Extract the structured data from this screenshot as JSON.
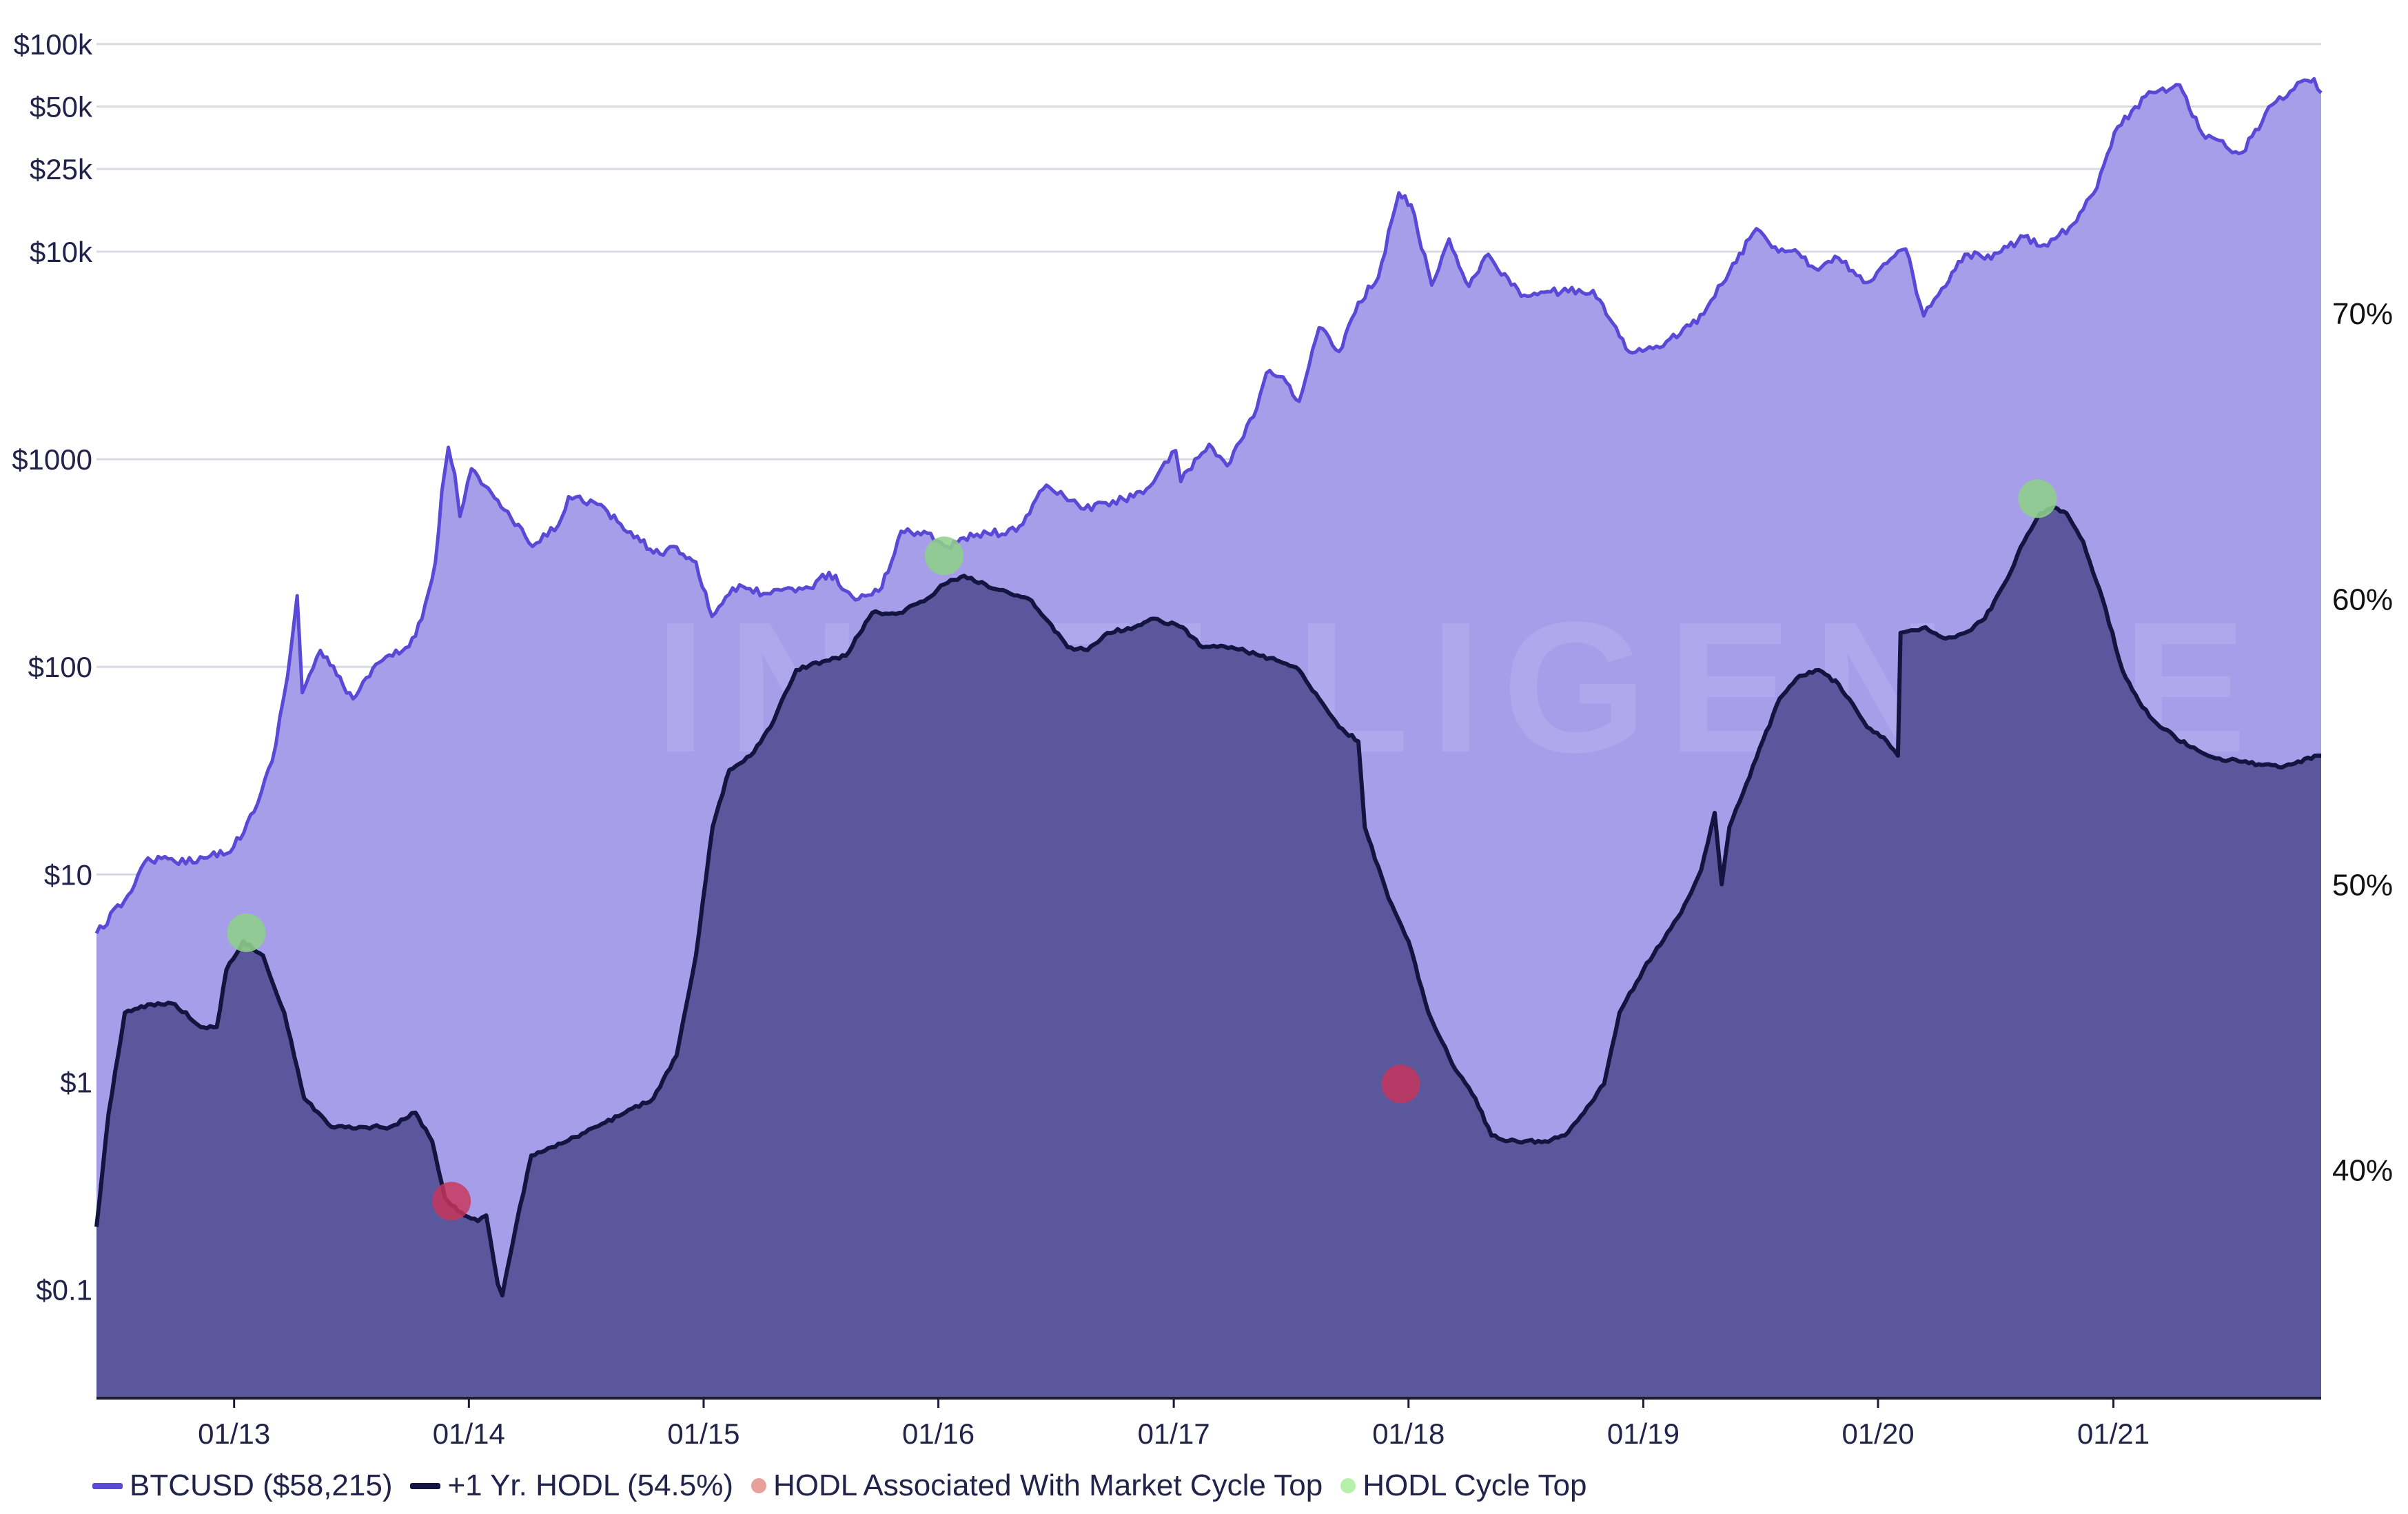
{
  "chart_data": {
    "type": "area",
    "x_ticks": [
      "01/13",
      "01/14",
      "01/15",
      "01/16",
      "01/17",
      "01/18",
      "01/19",
      "01/20",
      "01/21"
    ],
    "y_left": {
      "scale": "log",
      "range": [
        0.03,
        120000
      ],
      "ticks": [
        {
          "value": 100000,
          "label": "$100k"
        },
        {
          "value": 50000,
          "label": "$50k"
        },
        {
          "value": 25000,
          "label": "$25k"
        },
        {
          "value": 10000,
          "label": "$10k"
        },
        {
          "value": 1000,
          "label": "$1000"
        },
        {
          "value": 100,
          "label": "$100"
        },
        {
          "value": 10,
          "label": "$10"
        },
        {
          "value": 1,
          "label": "$1"
        },
        {
          "value": 0.1,
          "label": "$0.1"
        }
      ]
    },
    "y_right": {
      "scale": "linear",
      "unit": "%",
      "range": [
        32,
        80
      ],
      "ticks": [
        {
          "value": 70,
          "label": "70%"
        },
        {
          "value": 60,
          "label": "60%"
        },
        {
          "value": 50,
          "label": "50%"
        },
        {
          "value": 40,
          "label": "40%"
        }
      ]
    },
    "grid": true,
    "legend_position": "bottom-left",
    "series": [
      {
        "name": "BTCUSD ($58,215)",
        "axis": "left",
        "style": "area",
        "line_color": "#5a48d6",
        "fill_color": "#a79eea",
        "points": [
          [
            "2012-06-01",
            5.2
          ],
          [
            "2012-07-15",
            7.5
          ],
          [
            "2012-08-20",
            12
          ],
          [
            "2012-10-01",
            11.5
          ],
          [
            "2012-11-15",
            12
          ],
          [
            "2012-12-31",
            13.5
          ],
          [
            "2013-02-01",
            20
          ],
          [
            "2013-03-01",
            35
          ],
          [
            "2013-03-25",
            90
          ],
          [
            "2013-04-09",
            220
          ],
          [
            "2013-04-17",
            75
          ],
          [
            "2013-05-15",
            120
          ],
          [
            "2013-07-05",
            70
          ],
          [
            "2013-08-15",
            105
          ],
          [
            "2013-09-30",
            125
          ],
          [
            "2013-10-20",
            170
          ],
          [
            "2013-11-10",
            320
          ],
          [
            "2013-11-20",
            700
          ],
          [
            "2013-11-30",
            1140
          ],
          [
            "2013-12-10",
            850
          ],
          [
            "2013-12-18",
            530
          ],
          [
            "2014-01-05",
            900
          ],
          [
            "2014-02-10",
            650
          ],
          [
            "2014-02-25",
            570
          ],
          [
            "2014-04-10",
            380
          ],
          [
            "2014-05-20",
            480
          ],
          [
            "2014-06-05",
            660
          ],
          [
            "2014-07-15",
            620
          ],
          [
            "2014-08-20",
            500
          ],
          [
            "2014-09-25",
            400
          ],
          [
            "2014-10-25",
            350
          ],
          [
            "2014-11-15",
            380
          ],
          [
            "2014-12-20",
            320
          ],
          [
            "2015-01-14",
            175
          ],
          [
            "2015-02-15",
            240
          ],
          [
            "2015-04-15",
            225
          ],
          [
            "2015-06-15",
            240
          ],
          [
            "2015-07-15",
            285
          ],
          [
            "2015-08-25",
            210
          ],
          [
            "2015-10-05",
            240
          ],
          [
            "2015-11-04",
            450
          ],
          [
            "2015-12-15",
            440
          ],
          [
            "2016-01-15",
            380
          ],
          [
            "2016-03-01",
            435
          ],
          [
            "2016-05-01",
            450
          ],
          [
            "2016-06-17",
            750
          ],
          [
            "2016-07-15",
            660
          ],
          [
            "2016-08-15",
            575
          ],
          [
            "2016-10-15",
            640
          ],
          [
            "2016-11-25",
            740
          ],
          [
            "2017-01-04",
            1100
          ],
          [
            "2017-01-12",
            780
          ],
          [
            "2017-02-25",
            1180
          ],
          [
            "2017-03-25",
            930
          ],
          [
            "2017-05-05",
            1600
          ],
          [
            "2017-05-25",
            2600
          ],
          [
            "2017-06-15",
            2500
          ],
          [
            "2017-07-15",
            1900
          ],
          [
            "2017-08-15",
            4300
          ],
          [
            "2017-09-15",
            3300
          ],
          [
            "2017-10-15",
            5700
          ],
          [
            "2017-11-15",
            7500
          ],
          [
            "2017-12-17",
            19200
          ],
          [
            "2018-01-05",
            16800
          ],
          [
            "2018-02-06",
            6900
          ],
          [
            "2018-03-05",
            11500
          ],
          [
            "2018-04-05",
            6800
          ],
          [
            "2018-05-05",
            9700
          ],
          [
            "2018-06-25",
            6100
          ],
          [
            "2018-08-10",
            6400
          ],
          [
            "2018-10-15",
            6500
          ],
          [
            "2018-11-25",
            3900
          ],
          [
            "2018-12-15",
            3250
          ],
          [
            "2019-02-01",
            3500
          ],
          [
            "2019-04-05",
            5000
          ],
          [
            "2019-05-15",
            8000
          ],
          [
            "2019-06-26",
            12900
          ],
          [
            "2019-07-20",
            10500
          ],
          [
            "2019-08-25",
            10200
          ],
          [
            "2019-09-25",
            8300
          ],
          [
            "2019-10-26",
            9500
          ],
          [
            "2019-12-15",
            7100
          ],
          [
            "2020-01-15",
            8800
          ],
          [
            "2020-02-13",
            10300
          ],
          [
            "2020-03-12",
            4900
          ],
          [
            "2020-04-15",
            6800
          ],
          [
            "2020-05-15",
            9700
          ],
          [
            "2020-06-25",
            9200
          ],
          [
            "2020-08-15",
            11800
          ],
          [
            "2020-09-15",
            10800
          ],
          [
            "2020-10-25",
            13100
          ],
          [
            "2020-12-01",
            19000
          ],
          [
            "2021-01-08",
            40000
          ],
          [
            "2021-02-20",
            56000
          ],
          [
            "2021-04-14",
            63500
          ],
          [
            "2021-05-19",
            37000
          ],
          [
            "2021-06-25",
            32000
          ],
          [
            "2021-07-20",
            30000
          ],
          [
            "2021-09-05",
            51000
          ],
          [
            "2021-10-20",
            66000
          ],
          [
            "2021-11-09",
            68000
          ],
          [
            "2021-11-20",
            58215
          ]
        ]
      },
      {
        "name": "+1 Yr. HODL (54.5%)",
        "axis": "right",
        "style": "area",
        "line_color": "#141440",
        "fill_color": "#5b579c",
        "points": [
          [
            "2012-06-01",
            38
          ],
          [
            "2012-06-20",
            42
          ],
          [
            "2012-07-15",
            45.5
          ],
          [
            "2012-08-25",
            45.8
          ],
          [
            "2012-10-01",
            45.8
          ],
          [
            "2012-11-10",
            45
          ],
          [
            "2012-12-05",
            45
          ],
          [
            "2012-12-20",
            47
          ],
          [
            "2013-01-15",
            48
          ],
          [
            "2013-02-15",
            47.5
          ],
          [
            "2013-03-20",
            45.5
          ],
          [
            "2013-04-20",
            42.5
          ],
          [
            "2013-06-01",
            41.5
          ],
          [
            "2013-07-15",
            41.5
          ],
          [
            "2013-09-01",
            41.5
          ],
          [
            "2013-10-10",
            42
          ],
          [
            "2013-11-05",
            41
          ],
          [
            "2013-11-25",
            39
          ],
          [
            "2013-12-25",
            38.4
          ],
          [
            "2014-01-15",
            38.2
          ],
          [
            "2014-01-28",
            38.4
          ],
          [
            "2014-02-15",
            36
          ],
          [
            "2014-02-22",
            35.6
          ],
          [
            "2014-03-15",
            38
          ],
          [
            "2014-04-08",
            40.5
          ],
          [
            "2014-05-15",
            40.8
          ],
          [
            "2014-07-01",
            41.3
          ],
          [
            "2014-09-01",
            42
          ],
          [
            "2014-10-15",
            42.5
          ],
          [
            "2014-11-20",
            44
          ],
          [
            "2014-12-20",
            47.5
          ],
          [
            "2015-01-15",
            52
          ],
          [
            "2015-02-10",
            54
          ],
          [
            "2015-03-15",
            54.5
          ],
          [
            "2015-04-15",
            55.5
          ],
          [
            "2015-05-25",
            57.5
          ],
          [
            "2015-07-05",
            57.8
          ],
          [
            "2015-08-10",
            58
          ],
          [
            "2015-09-20",
            59.5
          ],
          [
            "2015-11-01",
            59.5
          ],
          [
            "2015-12-15",
            60
          ],
          [
            "2016-01-10",
            60.5
          ],
          [
            "2016-02-10",
            60.8
          ],
          [
            "2016-04-05",
            60.3
          ],
          [
            "2016-05-20",
            60
          ],
          [
            "2016-06-20",
            59.2
          ],
          [
            "2016-07-20",
            58.3
          ],
          [
            "2016-08-20",
            58.2
          ],
          [
            "2016-09-20",
            58.8
          ],
          [
            "2016-11-01",
            59
          ],
          [
            "2016-12-01",
            59.3
          ],
          [
            "2017-01-15",
            59
          ],
          [
            "2017-02-15",
            58.3
          ],
          [
            "2017-04-01",
            58.3
          ],
          [
            "2017-05-15",
            58
          ],
          [
            "2017-06-15",
            57.8
          ],
          [
            "2017-07-15",
            57.5
          ],
          [
            "2017-08-15",
            56.5
          ],
          [
            "2017-09-15",
            55.5
          ],
          [
            "2017-10-15",
            55
          ],
          [
            "2017-10-25",
            52
          ],
          [
            "2017-12-01",
            49.5
          ],
          [
            "2018-01-01",
            48
          ],
          [
            "2018-02-01",
            45.5
          ],
          [
            "2018-03-15",
            43.5
          ],
          [
            "2018-04-15",
            42.5
          ],
          [
            "2018-05-10",
            41.2
          ],
          [
            "2018-06-01",
            41
          ],
          [
            "2018-07-01",
            41
          ],
          [
            "2018-08-01",
            41
          ],
          [
            "2018-09-01",
            41.2
          ],
          [
            "2018-10-01",
            42
          ],
          [
            "2018-11-01",
            43
          ],
          [
            "2018-11-25",
            45.5
          ],
          [
            "2019-01-01",
            47
          ],
          [
            "2019-03-01",
            49
          ],
          [
            "2019-04-01",
            50.5
          ],
          [
            "2019-04-22",
            52.5
          ],
          [
            "2019-05-03",
            50
          ],
          [
            "2019-05-15",
            52
          ],
          [
            "2019-06-10",
            53.5
          ],
          [
            "2019-08-01",
            56.5
          ],
          [
            "2019-09-01",
            57.3
          ],
          [
            "2019-10-01",
            57.5
          ],
          [
            "2019-11-01",
            57
          ],
          [
            "2019-12-15",
            55.5
          ],
          [
            "2020-01-15",
            55
          ],
          [
            "2020-02-01",
            54.5
          ],
          [
            "2020-02-05",
            58.8
          ],
          [
            "2020-03-15",
            59
          ],
          [
            "2020-04-15",
            58.6
          ],
          [
            "2020-05-15",
            58.8
          ],
          [
            "2020-06-15",
            59.3
          ],
          [
            "2020-07-15",
            60.5
          ],
          [
            "2020-08-15",
            62
          ],
          [
            "2020-09-10",
            63
          ],
          [
            "2020-10-01",
            63.2
          ],
          [
            "2020-10-20",
            63
          ],
          [
            "2020-11-15",
            62
          ],
          [
            "2020-12-15",
            60
          ],
          [
            "2021-01-15",
            57.5
          ],
          [
            "2021-02-15",
            56.2
          ],
          [
            "2021-03-15",
            55.5
          ],
          [
            "2021-05-01",
            54.8
          ],
          [
            "2021-06-15",
            54.4
          ],
          [
            "2021-07-15",
            54.3
          ],
          [
            "2021-08-15",
            54.2
          ],
          [
            "2021-09-15",
            54.1
          ],
          [
            "2021-10-15",
            54.3
          ],
          [
            "2021-11-20",
            54.5
          ]
        ]
      },
      {
        "name": "HODL Associated With Market Cycle Top",
        "axis": "right",
        "style": "markers",
        "color": "#e8a09a",
        "points": [
          [
            "2013-12-05",
            38.9
          ],
          [
            "2017-12-20",
            43.0
          ]
        ]
      },
      {
        "name": "HODL Cycle Top",
        "axis": "right",
        "style": "markers",
        "color": "#b7f0a8",
        "points": [
          [
            "2013-01-20",
            48.3
          ],
          [
            "2016-01-10",
            61.5
          ],
          [
            "2020-09-05",
            63.5
          ]
        ]
      }
    ]
  },
  "legend": [
    {
      "label": "BTCUSD ($58,215)",
      "kind": "line",
      "color": "#5a48d6"
    },
    {
      "label": "+1 Yr. HODL (54.5%)",
      "kind": "line",
      "color": "#141440"
    },
    {
      "label": "HODL Associated With Market Cycle Top",
      "kind": "dot",
      "color": "#e8a09a"
    },
    {
      "label": "HODL Cycle Top",
      "kind": "dot",
      "color": "#b7f0a8"
    }
  ],
  "watermark": {
    "text": "INTELLIGENCE"
  }
}
